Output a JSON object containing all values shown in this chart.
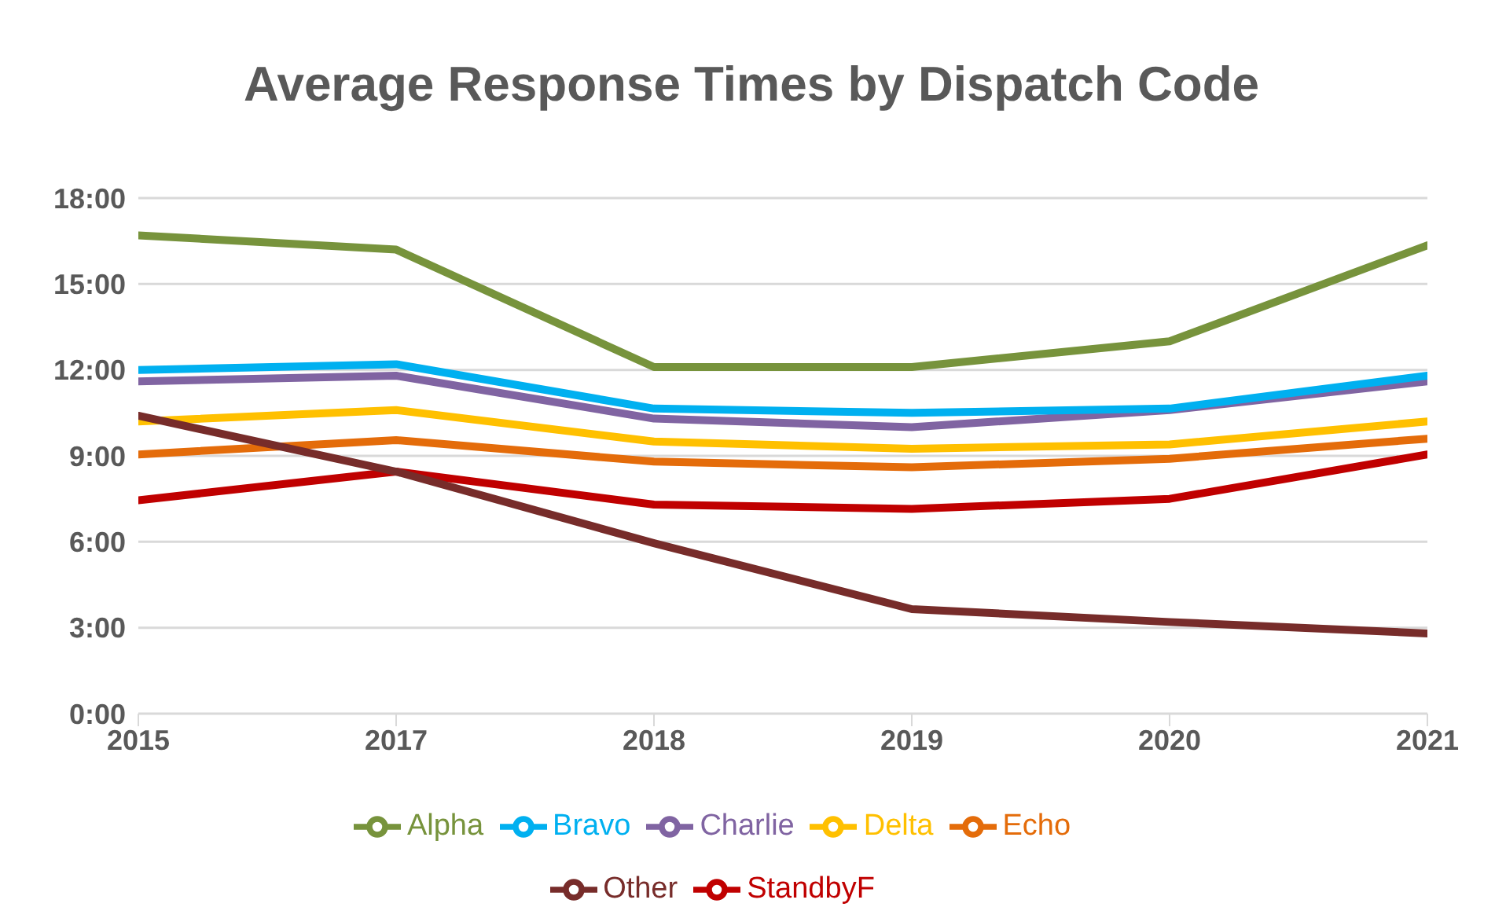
{
  "chart_data": {
    "type": "line",
    "title": "Average Response Times by Dispatch Code",
    "categories": [
      "2015",
      "2017",
      "2018",
      "2019",
      "2020",
      "2021"
    ],
    "series": [
      {
        "name": "Echo",
        "color": "#e46c0a",
        "values": [
          9.05,
          9.55,
          8.8,
          8.6,
          8.9,
          9.6
        ]
      },
      {
        "name": "Delta",
        "color": "#ffc000",
        "values": [
          10.2,
          10.6,
          9.5,
          9.25,
          9.4,
          10.2
        ]
      },
      {
        "name": "Charlie",
        "color": "#8064a2",
        "values": [
          11.6,
          11.8,
          10.3,
          10.0,
          10.6,
          11.6
        ]
      },
      {
        "name": "Bravo",
        "color": "#00b0f0",
        "values": [
          12.0,
          12.2,
          10.65,
          10.5,
          10.65,
          11.8
        ]
      },
      {
        "name": "Alpha",
        "color": "#77933c",
        "values": [
          16.7,
          16.2,
          12.1,
          12.1,
          13.0,
          16.35
        ]
      },
      {
        "name": "StandbyF",
        "color": "#c00000",
        "values": [
          7.45,
          8.45,
          7.3,
          7.15,
          7.5,
          9.05
        ]
      },
      {
        "name": "Other",
        "color": "#772c2a",
        "values": [
          10.4,
          8.45,
          5.95,
          3.65,
          3.2,
          2.8
        ]
      }
    ],
    "ylim": [
      0,
      18
    ],
    "yticks": [
      {
        "value": 0,
        "label": "0:00"
      },
      {
        "value": 3,
        "label": "3:00"
      },
      {
        "value": 6,
        "label": "6:00"
      },
      {
        "value": 9,
        "label": "9:00"
      },
      {
        "value": 12,
        "label": "12:00"
      },
      {
        "value": 15,
        "label": "15:00"
      },
      {
        "value": 18,
        "label": "18:00"
      }
    ],
    "grid": "y",
    "legend": "bottom",
    "marker": "none",
    "line_style": "solid"
  }
}
